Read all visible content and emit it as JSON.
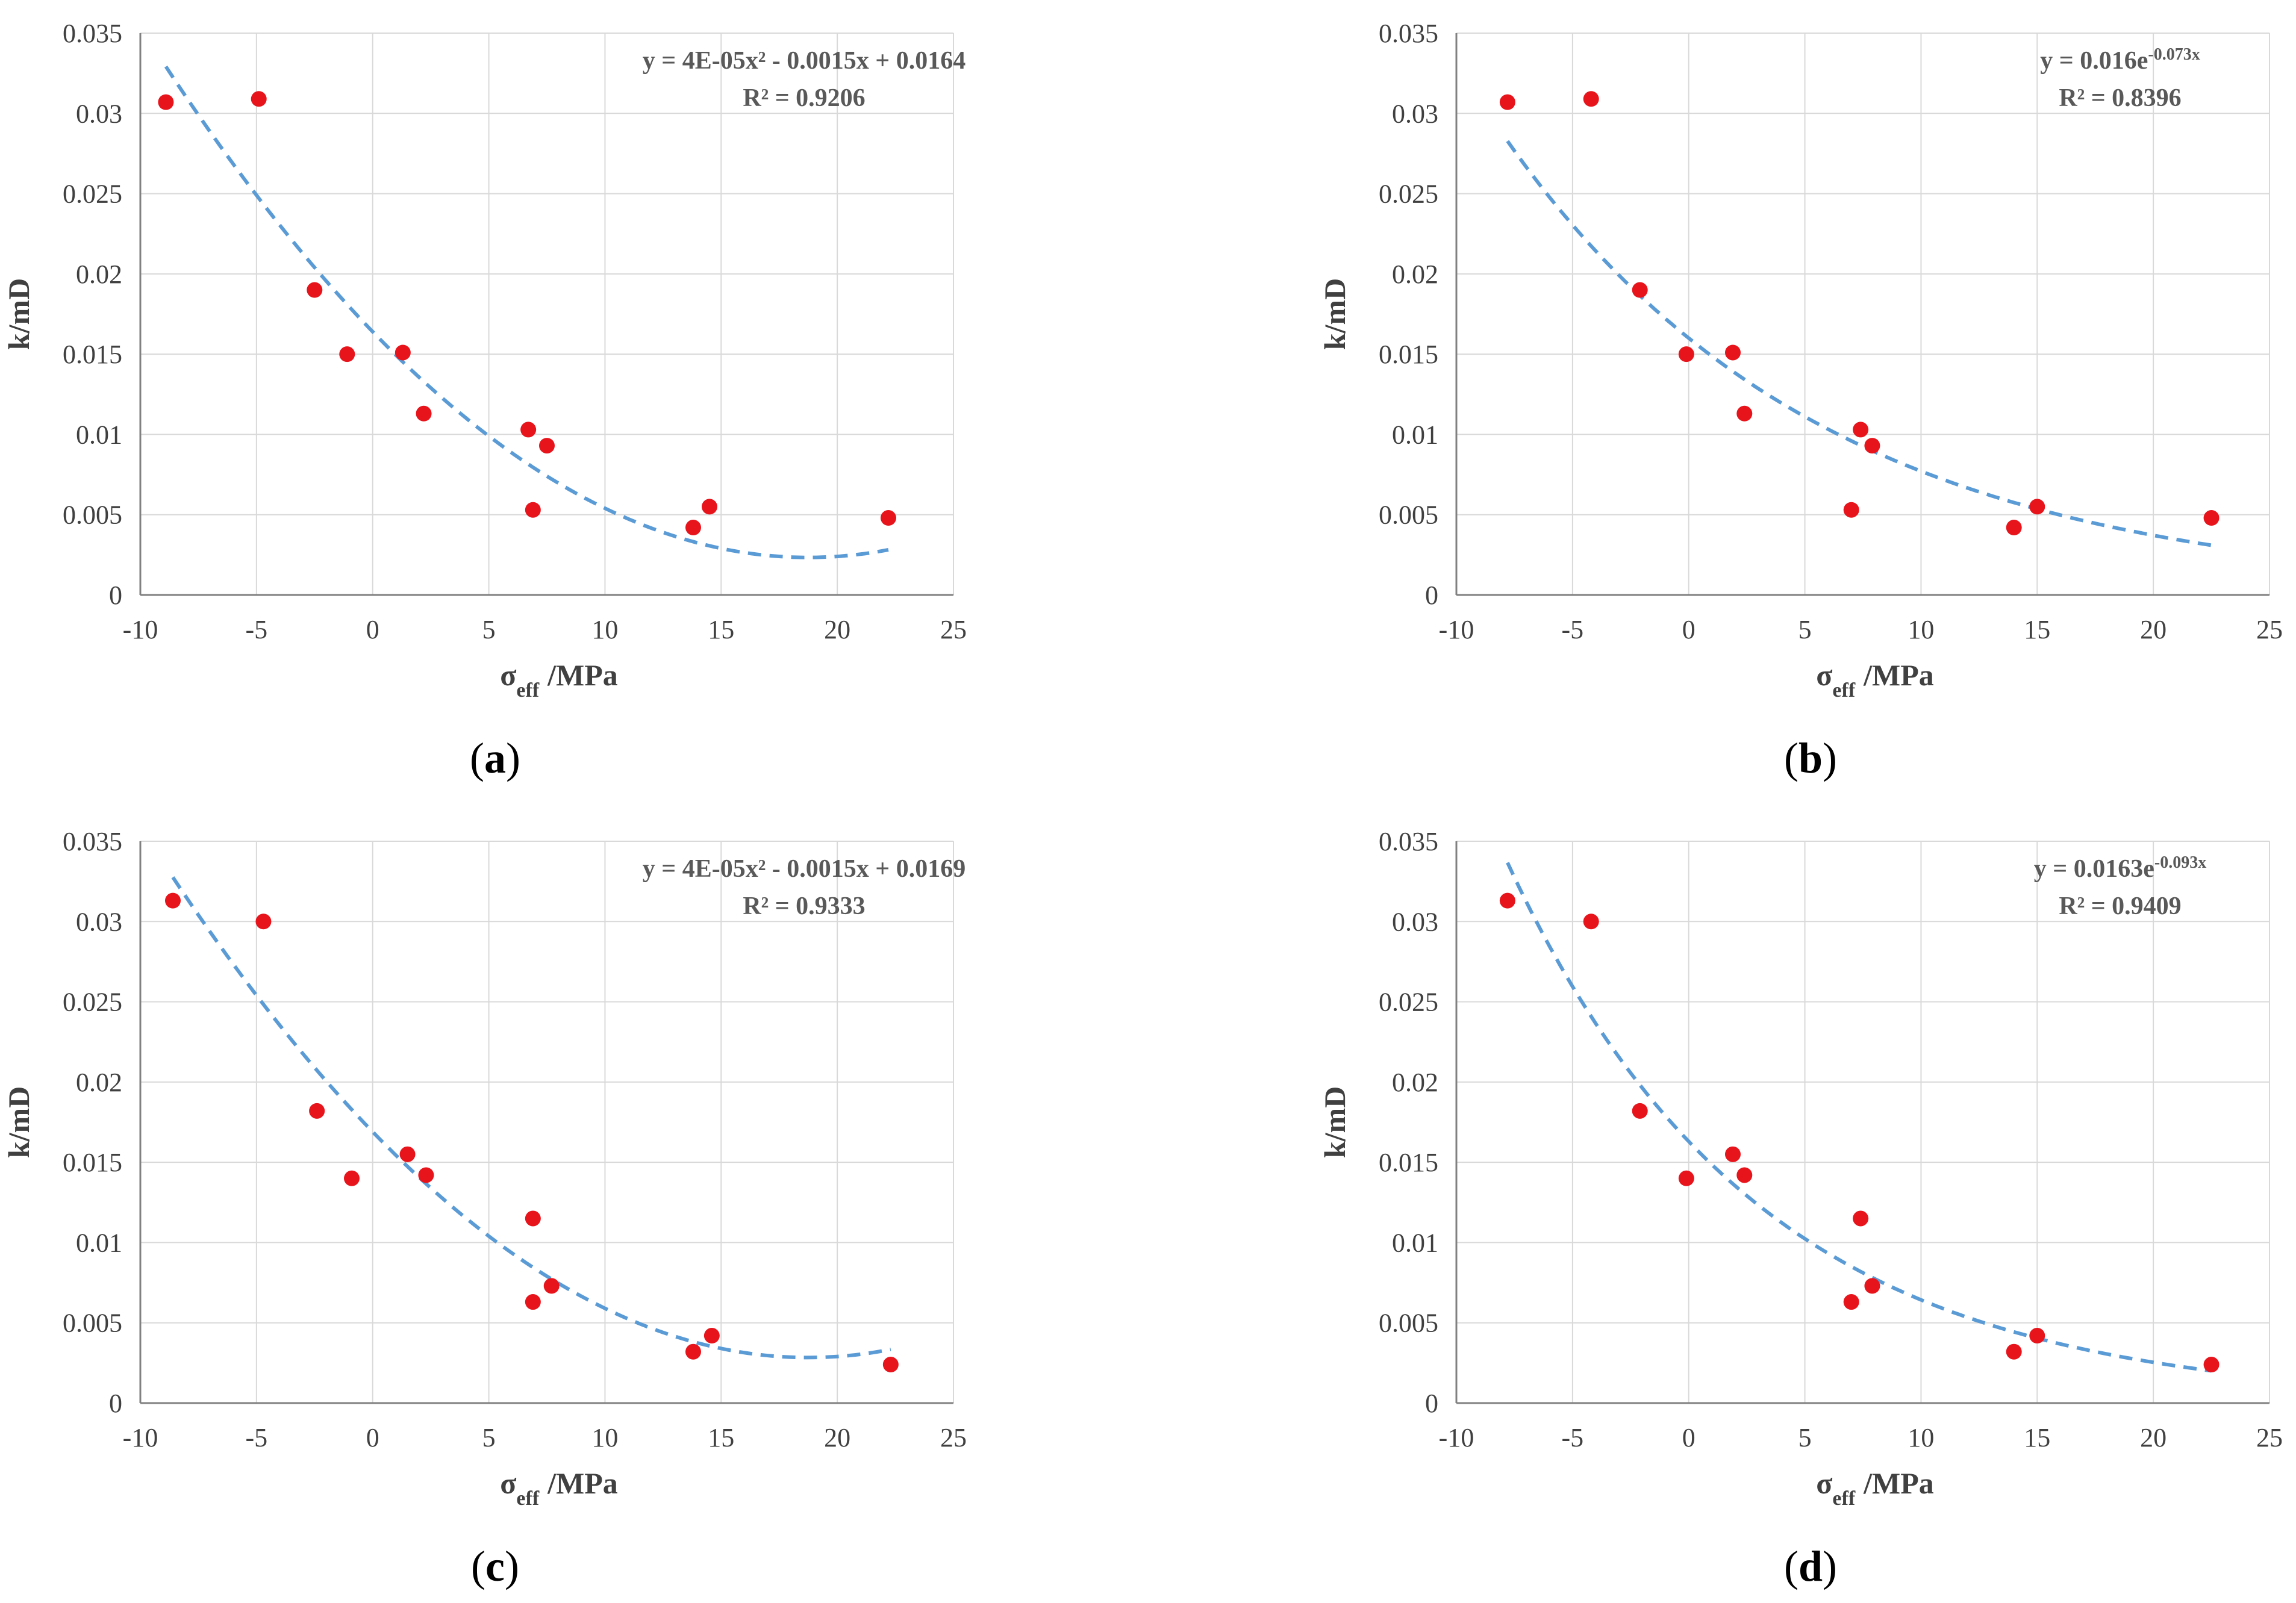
{
  "figure": {
    "colors": {
      "points": "#e8141c",
      "fit": "#5b9bd5",
      "grid": "#d9d9d9",
      "axis": "#808080",
      "text": "#404040",
      "equation": "#595959"
    },
    "axis_labels": {
      "x_main": "σ",
      "x_sub": "eff",
      "x_unit": "/MPa",
      "y": "k/mD"
    },
    "captions": [
      {
        "open": "(",
        "letter": "a",
        "close": ")"
      },
      {
        "open": "(",
        "letter": "b",
        "close": ")"
      },
      {
        "open": "(",
        "letter": "c",
        "close": ")"
      },
      {
        "open": "(",
        "letter": "d",
        "close": ")"
      }
    ]
  },
  "chart_data": [
    {
      "id": "a",
      "type": "scatter",
      "xlabel": "σeff /MPa",
      "ylabel": "k/mD",
      "xlim": [
        -10,
        25
      ],
      "ylim": [
        0,
        0.035
      ],
      "xticks": [
        "-10",
        "-5",
        "0",
        "5",
        "10",
        "15",
        "20",
        "25"
      ],
      "yticks": [
        "0",
        "0.005",
        "0.01",
        "0.015",
        "0.02",
        "0.025",
        "0.03",
        "0.035"
      ],
      "points": [
        {
          "x": -8.9,
          "y": 0.0307
        },
        {
          "x": -4.9,
          "y": 0.0309
        },
        {
          "x": -2.5,
          "y": 0.019
        },
        {
          "x": -1.1,
          "y": 0.015
        },
        {
          "x": 1.3,
          "y": 0.0151
        },
        {
          "x": 2.2,
          "y": 0.0113
        },
        {
          "x": 6.7,
          "y": 0.0103
        },
        {
          "x": 6.9,
          "y": 0.0053
        },
        {
          "x": 7.5,
          "y": 0.0093
        },
        {
          "x": 13.8,
          "y": 0.0042
        },
        {
          "x": 14.5,
          "y": 0.0055
        },
        {
          "x": 22.2,
          "y": 0.0048
        }
      ],
      "trendline": {
        "model": "poly2",
        "a": 4e-05,
        "b": -0.0015,
        "c": 0.0164,
        "x_range": [
          -8.9,
          22.2
        ]
      },
      "equation": "y = 4E-05x² - 0.0015x + 0.0164",
      "r2": "R² = 0.9206"
    },
    {
      "id": "b",
      "type": "scatter",
      "xlabel": "σeff /MPa",
      "ylabel": "k/mD",
      "xlim": [
        -10,
        25
      ],
      "ylim": [
        0,
        0.035
      ],
      "xticks": [
        "-10",
        "-5",
        "0",
        "5",
        "10",
        "15",
        "20",
        "25"
      ],
      "yticks": [
        "0",
        "0.005",
        "0.01",
        "0.015",
        "0.02",
        "0.025",
        "0.03",
        "0.035"
      ],
      "points": [
        {
          "x": -7.8,
          "y": 0.0307
        },
        {
          "x": -4.2,
          "y": 0.0309
        },
        {
          "x": -2.1,
          "y": 0.019
        },
        {
          "x": -0.1,
          "y": 0.015
        },
        {
          "x": 1.9,
          "y": 0.0151
        },
        {
          "x": 2.4,
          "y": 0.0113
        },
        {
          "x": 7.0,
          "y": 0.0053
        },
        {
          "x": 7.4,
          "y": 0.0103
        },
        {
          "x": 7.9,
          "y": 0.0093
        },
        {
          "x": 14.0,
          "y": 0.0042
        },
        {
          "x": 15.0,
          "y": 0.0055
        },
        {
          "x": 22.5,
          "y": 0.0048
        }
      ],
      "trendline": {
        "model": "exp",
        "a": 0.016,
        "b": -0.073,
        "x_range": [
          -7.8,
          22.5
        ]
      },
      "equation": "y = 0.016e",
      "equation_exp": "-0.073x",
      "r2": "R² = 0.8396"
    },
    {
      "id": "c",
      "type": "scatter",
      "xlabel": "σeff /MPa",
      "ylabel": "k/mD",
      "xlim": [
        -10,
        25
      ],
      "ylim": [
        0,
        0.035
      ],
      "xticks": [
        "-10",
        "-5",
        "0",
        "5",
        "10",
        "15",
        "20",
        "25"
      ],
      "yticks": [
        "0",
        "0.005",
        "0.01",
        "0.015",
        "0.02",
        "0.025",
        "0.03",
        "0.035"
      ],
      "points": [
        {
          "x": -8.6,
          "y": 0.0313
        },
        {
          "x": -4.7,
          "y": 0.03
        },
        {
          "x": -2.4,
          "y": 0.0182
        },
        {
          "x": -0.9,
          "y": 0.014
        },
        {
          "x": 1.5,
          "y": 0.0155
        },
        {
          "x": 2.3,
          "y": 0.0142
        },
        {
          "x": 6.9,
          "y": 0.0115
        },
        {
          "x": 6.9,
          "y": 0.0063
        },
        {
          "x": 7.7,
          "y": 0.0073
        },
        {
          "x": 13.8,
          "y": 0.0032
        },
        {
          "x": 14.6,
          "y": 0.0042
        },
        {
          "x": 22.3,
          "y": 0.0024
        }
      ],
      "trendline": {
        "model": "poly2",
        "a": 4e-05,
        "b": -0.0015,
        "c": 0.0169,
        "x_range": [
          -8.6,
          22.3
        ]
      },
      "equation": "y = 4E-05x² - 0.0015x + 0.0169",
      "r2": "R² = 0.9333"
    },
    {
      "id": "d",
      "type": "scatter",
      "xlabel": "σeff /MPa",
      "ylabel": "k/mD",
      "xlim": [
        -10,
        25
      ],
      "ylim": [
        0,
        0.035
      ],
      "xticks": [
        "-10",
        "-5",
        "0",
        "5",
        "10",
        "15",
        "20",
        "25"
      ],
      "yticks": [
        "0",
        "0.005",
        "0.01",
        "0.015",
        "0.02",
        "0.025",
        "0.03",
        "0.035"
      ],
      "points": [
        {
          "x": -7.8,
          "y": 0.0313
        },
        {
          "x": -4.2,
          "y": 0.03
        },
        {
          "x": -2.1,
          "y": 0.0182
        },
        {
          "x": -0.1,
          "y": 0.014
        },
        {
          "x": 1.9,
          "y": 0.0155
        },
        {
          "x": 2.4,
          "y": 0.0142
        },
        {
          "x": 7.0,
          "y": 0.0063
        },
        {
          "x": 7.4,
          "y": 0.0115
        },
        {
          "x": 7.9,
          "y": 0.0073
        },
        {
          "x": 14.0,
          "y": 0.0032
        },
        {
          "x": 15.0,
          "y": 0.0042
        },
        {
          "x": 22.5,
          "y": 0.0024
        }
      ],
      "trendline": {
        "model": "exp",
        "a": 0.0163,
        "b": -0.093,
        "x_range": [
          -7.8,
          22.5
        ]
      },
      "equation": "y = 0.0163e",
      "equation_exp": "-0.093x",
      "r2": "R² = 0.9409"
    }
  ]
}
